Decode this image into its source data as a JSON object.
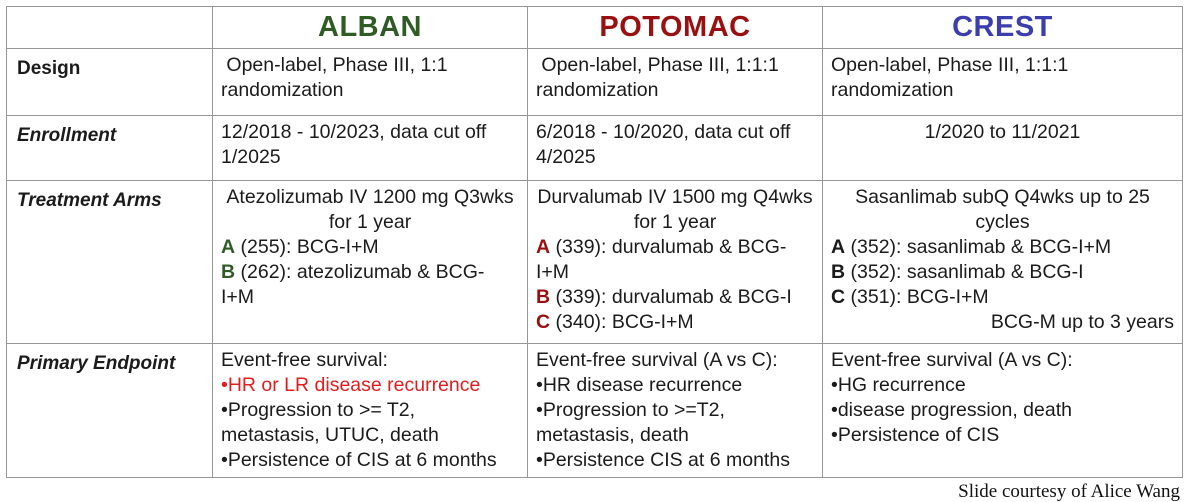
{
  "page": {
    "credit": "Slide courtesy of Alice Wang"
  },
  "colors": {
    "alban_green": "#2f5c25",
    "potomac_red": "#9a1010",
    "crest_blue": "#3a3eae",
    "highlight_red": "#e11d1d",
    "border_gray": "#979797"
  },
  "table": {
    "corner_label": "",
    "trials": [
      {
        "name": "ALBAN",
        "color": "#2f5c25"
      },
      {
        "name": "POTOMAC",
        "color": "#9a1010"
      },
      {
        "name": "CREST",
        "color": "#3a3eae"
      }
    ],
    "rows": [
      {
        "id": "design",
        "label": "Design",
        "label_italic": false,
        "cells": [
          {
            "lines": [
              {
                "seg": [
                  {
                    "t": " Open-label, Phase III, 1:1"
                  }
                ]
              },
              {
                "seg": [
                  {
                    "t": "randomization"
                  }
                ]
              }
            ]
          },
          {
            "lines": [
              {
                "seg": [
                  {
                    "t": " Open-label, Phase III, 1:1:1"
                  }
                ]
              },
              {
                "seg": [
                  {
                    "t": "randomization"
                  }
                ]
              }
            ]
          },
          {
            "lines": [
              {
                "seg": [
                  {
                    "t": "Open-label, Phase III, 1:1:1"
                  }
                ]
              },
              {
                "seg": [
                  {
                    "t": "randomization"
                  }
                ]
              }
            ]
          }
        ]
      },
      {
        "id": "enrollment",
        "label": "Enrollment",
        "label_italic": true,
        "cells": [
          {
            "lines": [
              {
                "seg": [
                  {
                    "t": "12/2018 - 10/2023, data cut off"
                  }
                ]
              },
              {
                "seg": [
                  {
                    "t": "1/2025"
                  }
                ]
              }
            ]
          },
          {
            "lines": [
              {
                "seg": [
                  {
                    "t": "6/2018 - 10/2020, data cut off"
                  }
                ]
              },
              {
                "seg": [
                  {
                    "t": "4/2025"
                  }
                ]
              }
            ]
          },
          {
            "lines": [
              {
                "align": "center",
                "seg": [
                  {
                    "t": "1/2020 to 11/2021"
                  }
                ]
              }
            ]
          }
        ]
      },
      {
        "id": "treatment-arms",
        "label": "Treatment Arms",
        "label_italic": true,
        "cells": [
          {
            "lines": [
              {
                "align": "center",
                "seg": [
                  {
                    "t": "Atezolizumab IV 1200 mg Q3wks"
                  }
                ]
              },
              {
                "align": "center",
                "seg": [
                  {
                    "t": "for 1 year"
                  }
                ]
              },
              {
                "seg": [
                  {
                    "t": "A",
                    "b": true,
                    "c": "#2f5c25"
                  },
                  {
                    "t": " (255): BCG-I+M"
                  }
                ]
              },
              {
                "seg": [
                  {
                    "t": "B",
                    "b": true,
                    "c": "#2f5c25"
                  },
                  {
                    "t": " (262): atezolizumab & BCG-"
                  }
                ]
              },
              {
                "seg": [
                  {
                    "t": "I+M"
                  }
                ]
              }
            ]
          },
          {
            "lines": [
              {
                "align": "center",
                "seg": [
                  {
                    "t": "Durvalumab IV 1500 mg Q4wks"
                  }
                ]
              },
              {
                "align": "center",
                "seg": [
                  {
                    "t": "for 1 year"
                  }
                ]
              },
              {
                "seg": [
                  {
                    "t": "A",
                    "b": true,
                    "c": "#9a1010"
                  },
                  {
                    "t": " (339): durvalumab & BCG-"
                  }
                ]
              },
              {
                "seg": [
                  {
                    "t": "I+M"
                  }
                ]
              },
              {
                "seg": [
                  {
                    "t": "B",
                    "b": true,
                    "c": "#9a1010"
                  },
                  {
                    "t": " (339): durvalumab & BCG-I"
                  }
                ]
              },
              {
                "seg": [
                  {
                    "t": "C",
                    "b": true,
                    "c": "#9a1010"
                  },
                  {
                    "t": " (340): BCG-I+M"
                  }
                ]
              }
            ]
          },
          {
            "lines": [
              {
                "align": "center",
                "seg": [
                  {
                    "t": "Sasanlimab subQ Q4wks up to 25"
                  }
                ]
              },
              {
                "align": "center",
                "seg": [
                  {
                    "t": "cycles"
                  }
                ]
              },
              {
                "seg": [
                  {
                    "t": "A",
                    "b": true
                  },
                  {
                    "t": " (352): sasanlimab & BCG-I+M"
                  }
                ]
              },
              {
                "seg": [
                  {
                    "t": "B",
                    "b": true
                  },
                  {
                    "t": " (352): sasanlimab & BCG-I"
                  }
                ]
              },
              {
                "seg": [
                  {
                    "t": "C",
                    "b": true
                  },
                  {
                    "t": " (351): BCG-I+M"
                  }
                ]
              },
              {
                "align": "right",
                "seg": [
                  {
                    "t": "BCG-M up to 3 years"
                  }
                ]
              }
            ]
          }
        ]
      },
      {
        "id": "primary-endpoint",
        "label": "Primary Endpoint",
        "label_italic": true,
        "cells": [
          {
            "lines": [
              {
                "seg": [
                  {
                    "t": "Event-free survival:"
                  }
                ]
              },
              {
                "seg": [
                  {
                    "t": "•HR or LR disease recurrence",
                    "c": "#e11d1d"
                  }
                ]
              },
              {
                "seg": [
                  {
                    "t": "•Progression to >= T2,"
                  }
                ]
              },
              {
                "seg": [
                  {
                    "t": "metastasis, UTUC, death"
                  }
                ]
              },
              {
                "seg": [
                  {
                    "t": "•Persistence of CIS at 6 months"
                  }
                ]
              }
            ]
          },
          {
            "lines": [
              {
                "seg": [
                  {
                    "t": "Event-free survival (A vs C):"
                  }
                ]
              },
              {
                "seg": [
                  {
                    "t": "•HR disease recurrence"
                  }
                ]
              },
              {
                "seg": [
                  {
                    "t": "•Progression to >=T2,"
                  }
                ]
              },
              {
                "seg": [
                  {
                    "t": "metastasis, death"
                  }
                ]
              },
              {
                "seg": [
                  {
                    "t": "•Persistence CIS at 6 months"
                  }
                ]
              }
            ]
          },
          {
            "lines": [
              {
                "seg": [
                  {
                    "t": "Event-free survival (A vs C):"
                  }
                ]
              },
              {
                "seg": [
                  {
                    "t": "•HG recurrence"
                  }
                ]
              },
              {
                "seg": [
                  {
                    "t": "•disease progression, death"
                  }
                ]
              },
              {
                "seg": [
                  {
                    "t": "•Persistence of CIS"
                  }
                ]
              }
            ]
          }
        ]
      }
    ]
  }
}
